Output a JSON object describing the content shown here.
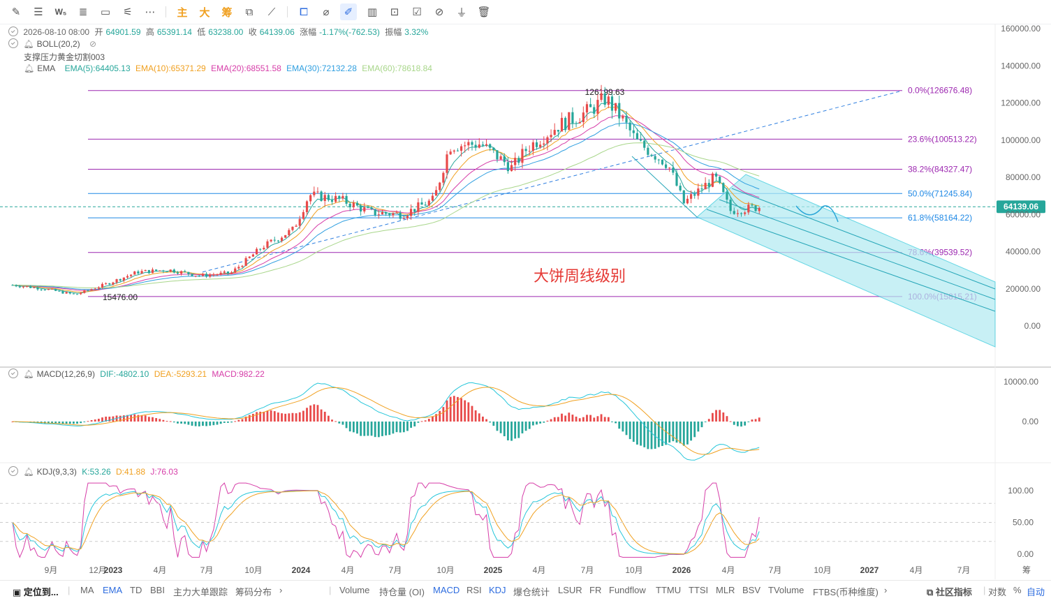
{
  "toolbar": {
    "tools": [
      "pen-icon",
      "horizontal-lines-icon",
      "w5-icon",
      "list-lines-icon",
      "rectangle-icon",
      "brush-icon",
      "more-icon"
    ],
    "label_zhu": "主",
    "label_da": "大",
    "label_chou": "筹",
    "tools2": [
      "text-tool-icon",
      "measure-icon",
      "copy-icon",
      "ruler-icon",
      "pencil-icon",
      "candle-icon",
      "lock-icon",
      "notes-icon",
      "magnet-icon",
      "filter-icon",
      "trash-icon"
    ]
  },
  "ohlc": {
    "date": "2026-08-10 08:00",
    "open_label": "开",
    "open": "64901.59",
    "high_label": "高",
    "high": "65391.14",
    "low_label": "低",
    "low": "63238.00",
    "close_label": "收",
    "close": "64139.06",
    "chg_label": "涨幅",
    "chg": "-1.17%(-762.53)",
    "amp_label": "振幅",
    "amp": "3.32%"
  },
  "boll": {
    "label": "BOLL(20,2)"
  },
  "drawing_label": "支撑压力黄金切割003",
  "ema": {
    "label": "EMA",
    "items": [
      {
        "text": "EMA(5):64405.13",
        "color": "#26a69a"
      },
      {
        "text": "EMA(10):65371.29",
        "color": "#f0a020"
      },
      {
        "text": "EMA(20):68551.58",
        "color": "#d63da8"
      },
      {
        "text": "EMA(30):72132.28",
        "color": "#2f9fe0"
      },
      {
        "text": "EMA(60):78618.84",
        "color": "#a8d68a"
      }
    ]
  },
  "main": {
    "price_axis": [
      "160000.00",
      "140000.00",
      "120000.00",
      "100000.00",
      "80000.00",
      "60000.00",
      "40000.00",
      "20000.00",
      "0.00"
    ],
    "current_price": "64139.06",
    "watermark": "大饼周线级别",
    "high_label": "126199.63",
    "low_label": "15476.00",
    "fib": [
      {
        "label": "0.0%(126676.48)",
        "value": 126676.48,
        "color": "#9c27b0"
      },
      {
        "label": "23.6%(100513.22)",
        "value": 100513.22,
        "color": "#9c27b0"
      },
      {
        "label": "38.2%(84327.47)",
        "value": 84327.47,
        "color": "#9c27b0"
      },
      {
        "label": "50.0%(71245.84)",
        "value": 71245.84,
        "color": "#1e88e5"
      },
      {
        "label": "61.8%(58164.22)",
        "value": 58164.22,
        "color": "#1e88e5"
      },
      {
        "label": "78.6%(39539.52)",
        "value": 39539.52,
        "color": "#9c27b0"
      },
      {
        "label": "100.0%(15815.21)",
        "value": 15815.21,
        "color": "#9c27b0"
      }
    ]
  },
  "macd": {
    "label": "MACD(12,26,9)",
    "dif": "DIF:-4802.10",
    "dea": "DEA:-5293.21",
    "macd": "MACD:982.22",
    "axis": [
      "10000.00",
      "0.00"
    ]
  },
  "kdj": {
    "label": "KDJ(9,3,3)",
    "k": "K:53.26",
    "d": "D:41.88",
    "j": "J:76.03",
    "axis": [
      "100.00",
      "50.00",
      "0.00"
    ]
  },
  "time_axis": [
    "9月",
    "12月",
    "2023",
    "4月",
    "7月",
    "10月",
    "2024",
    "4月",
    "7月",
    "10月",
    "2025",
    "4月",
    "7月",
    "10月",
    "2026",
    "4月",
    "7月",
    "10月",
    "2027",
    "4月",
    "7月"
  ],
  "time_axis_right": "筹",
  "bottom_bar": {
    "locate": "定位到...",
    "left_items": [
      "MA",
      "EMA",
      "TD",
      "BBI",
      "主力大单跟踪",
      "筹码分布"
    ],
    "right_items": [
      "Volume",
      "持仓量 (OI)",
      "MACD",
      "RSI",
      "KDJ",
      "爆仓统计",
      "LSUR",
      "FR",
      "Fundflow",
      "TTMU",
      "TTSI",
      "MLR",
      "BSV",
      "TVolume",
      "FTBS(币种维度)"
    ],
    "community": "社区指标",
    "log": "对数",
    "pct": "%",
    "auto": "自动"
  },
  "chart_data": {
    "type": "line",
    "title": "",
    "xlabel": "",
    "ylabel": "",
    "ylim": [
      0,
      160000
    ],
    "x": [
      "2022-08",
      "2022-10",
      "2022-12",
      "2023-02",
      "2023-04",
      "2023-06",
      "2023-08",
      "2023-10",
      "2023-12",
      "2024-02",
      "2024-03",
      "2024-05",
      "2024-07",
      "2024-09",
      "2024-11",
      "2024-12",
      "2025-02",
      "2025-04",
      "2025-05",
      "2025-07",
      "2025-09",
      "2025-10",
      "2025-11",
      "2025-12",
      "2026-02",
      "2026-03",
      "2026-05",
      "2026-06",
      "2026-08"
    ],
    "series": [
      {
        "name": "close",
        "values": [
          22000,
          20000,
          16800,
          22500,
          29000,
          30200,
          27000,
          28500,
          42500,
          52000,
          70500,
          68000,
          61000,
          60000,
          68000,
          97000,
          98000,
          85000,
          96000,
          108000,
          116000,
          122500,
          112000,
          99000,
          87000,
          66000,
          80000,
          62000,
          64139
        ]
      }
    ],
    "fib_levels": [
      126676.48,
      100513.22,
      84327.47,
      71245.84,
      58164.22,
      39539.52,
      15815.21
    ],
    "annotations": [
      "126199.63",
      "15476.00"
    ]
  }
}
